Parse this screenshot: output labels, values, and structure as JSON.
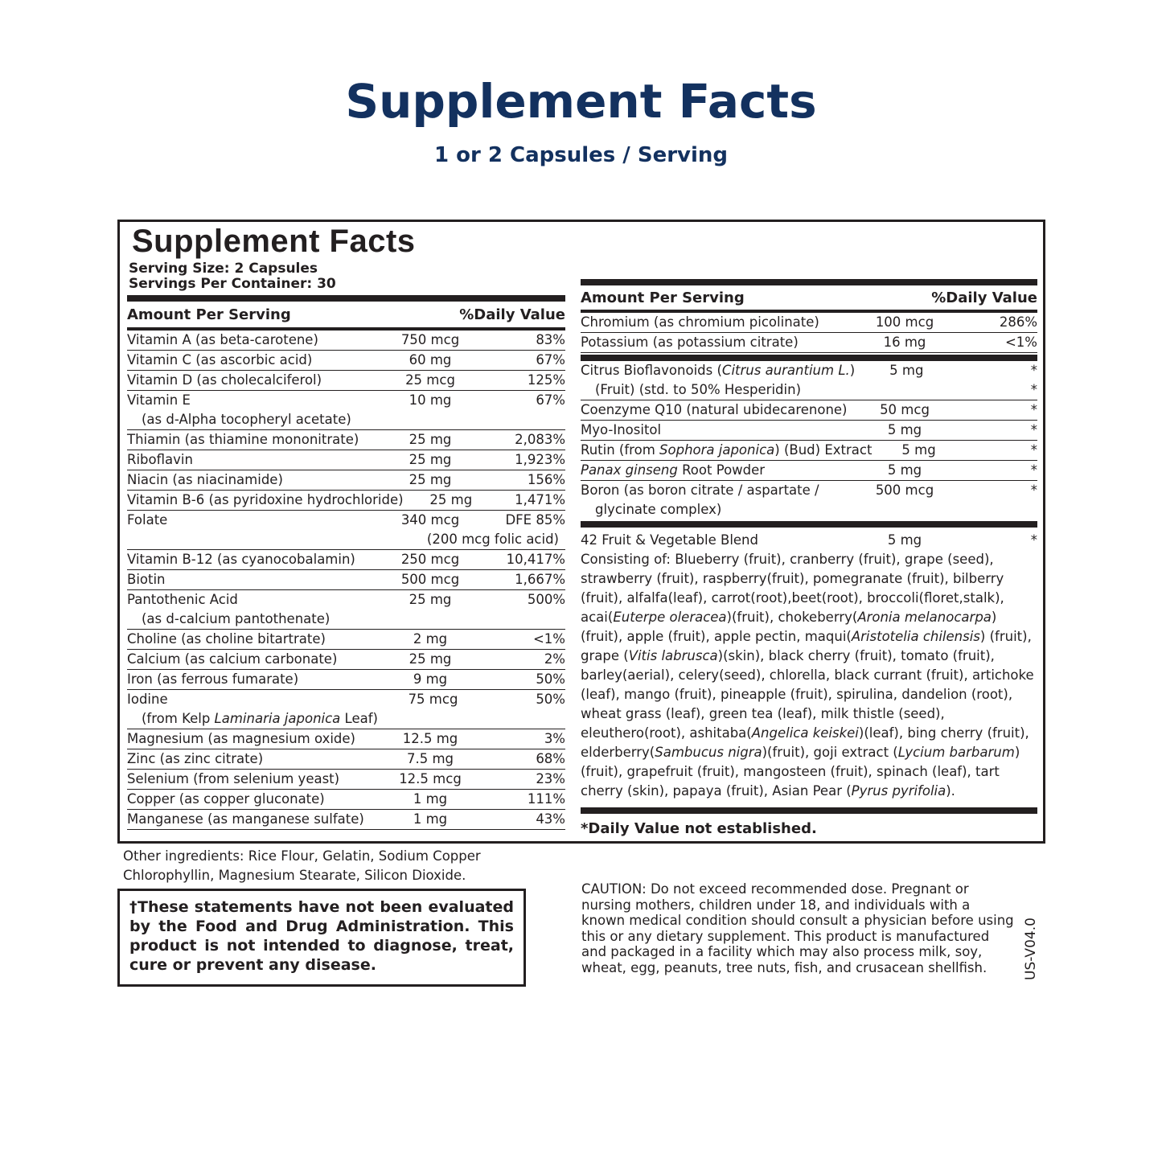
{
  "header": {
    "title": "Supplement Facts",
    "subtitle": "1 or 2 Capsules / Serving"
  },
  "panel": {
    "title": "Supplement Facts",
    "serving_size": "Serving Size: 2 Capsules",
    "servings_per_container": "Servings Per Container: 30",
    "col_amount": "Amount Per Serving",
    "col_dv": "%Daily Value",
    "left_rows": [
      {
        "name": [
          {
            "t": "Vitamin A (as beta-carotene)"
          }
        ],
        "amount": "750 mcg",
        "dv": "83%"
      },
      {
        "name": [
          {
            "t": "Vitamin C (as ascorbic acid)"
          }
        ],
        "amount": "60 mg",
        "dv": "67%"
      },
      {
        "name": [
          {
            "t": "Vitamin D (as cholecalciferol)"
          }
        ],
        "amount": "25 mcg",
        "dv": "125%"
      },
      {
        "name": [
          {
            "t": "Vitamin E"
          }
        ],
        "sub": [
          {
            "t": "(as d-Alpha tocopheryl acetate)"
          }
        ],
        "amount": "10 mg",
        "dv": "67%"
      },
      {
        "name": [
          {
            "t": "Thiamin (as thiamine mononitrate)"
          }
        ],
        "amount": "25 mg",
        "dv": "2,083%"
      },
      {
        "name": [
          {
            "t": "Riboflavin"
          }
        ],
        "amount": "25 mg",
        "dv": "1,923%"
      },
      {
        "name": [
          {
            "t": "Niacin (as niacinamide)"
          }
        ],
        "amount": "25 mg",
        "dv": "156%"
      },
      {
        "name": [
          {
            "t": "Vitamin B-6 (as pyridoxine hydrochloride)"
          }
        ],
        "amount": "25 mg",
        "dv": "1,471%"
      },
      {
        "name": [
          {
            "t": "Folate"
          }
        ],
        "amount": "340 mcg",
        "dv": "DFE 85%",
        "amount_sub": "(200 mcg folic acid)"
      },
      {
        "name": [
          {
            "t": "Vitamin B-12 (as cyanocobalamin)"
          }
        ],
        "amount": "250 mcg",
        "dv": "10,417%"
      },
      {
        "name": [
          {
            "t": "Biotin"
          }
        ],
        "amount": "500 mcg",
        "dv": "1,667%"
      },
      {
        "name": [
          {
            "t": "Pantothenic Acid"
          }
        ],
        "sub": [
          {
            "t": "(as d-calcium pantothenate)"
          }
        ],
        "amount": "25 mg",
        "dv": "500%"
      },
      {
        "name": [
          {
            "t": "Choline (as choline bitartrate)"
          }
        ],
        "amount": "2 mg",
        "dv": "<1%"
      },
      {
        "name": [
          {
            "t": "Calcium (as calcium carbonate)"
          }
        ],
        "amount": "25 mg",
        "dv": "2%"
      },
      {
        "name": [
          {
            "t": "Iron (as ferrous fumarate)"
          }
        ],
        "amount": "9 mg",
        "dv": "50%"
      },
      {
        "name": [
          {
            "t": "Iodine"
          }
        ],
        "sub": [
          {
            "t": "(from Kelp "
          },
          {
            "t": "Laminaria japonica",
            "i": true
          },
          {
            "t": " Leaf)"
          }
        ],
        "amount": "75 mcg",
        "dv": "50%"
      },
      {
        "name": [
          {
            "t": "Magnesium (as magnesium oxide)"
          }
        ],
        "amount": "12.5 mg",
        "dv": "3%"
      },
      {
        "name": [
          {
            "t": "Zinc (as zinc citrate)"
          }
        ],
        "amount": "7.5 mg",
        "dv": "68%"
      },
      {
        "name": [
          {
            "t": "Selenium (from selenium yeast)"
          }
        ],
        "amount": "12.5 mcg",
        "dv": "23%"
      },
      {
        "name": [
          {
            "t": "Copper (as copper gluconate)"
          }
        ],
        "amount": "1 mg",
        "dv": "111%"
      },
      {
        "name": [
          {
            "t": "Manganese (as manganese sulfate)"
          }
        ],
        "amount": "1 mg",
        "dv": "43%"
      }
    ],
    "right_rows_a": [
      {
        "name": [
          {
            "t": "Chromium (as chromium picolinate)"
          }
        ],
        "amount": "100 mcg",
        "dv": "286%"
      },
      {
        "name": [
          {
            "t": "Potassium (as potassium citrate)"
          }
        ],
        "amount": "16 mg",
        "dv": "<1%"
      }
    ],
    "right_rows_b": [
      {
        "name": [
          {
            "t": "Citrus Bioflavonoids ("
          },
          {
            "t": "Citrus aurantium L.",
            "i": true
          },
          {
            "t": ")"
          }
        ],
        "sub": [
          {
            "t": "(Fruit) (std. to 50% Hesperidin)"
          }
        ],
        "amount": "5 mg",
        "dv": "*",
        "dv_sub": "*"
      },
      {
        "name": [
          {
            "t": "Coenzyme Q10 (natural ubidecarenone)"
          }
        ],
        "amount": "50 mcg",
        "dv": "*"
      },
      {
        "name": [
          {
            "t": "Myo-Inositol"
          }
        ],
        "amount": "5 mg",
        "dv": "*"
      },
      {
        "name": [
          {
            "t": "Rutin (from "
          },
          {
            "t": "Sophora japonica",
            "i": true
          },
          {
            "t": ") (Bud) Extract"
          }
        ],
        "amount": "5 mg",
        "dv": "*"
      },
      {
        "name": [
          {
            "t": "Panax ginseng",
            "i": true
          },
          {
            "t": " Root Powder"
          }
        ],
        "amount": "5 mg",
        "dv": "*"
      },
      {
        "name": [
          {
            "t": "Boron (as boron citrate / aspartate /"
          }
        ],
        "sub": [
          {
            "t": "glycinate complex)"
          }
        ],
        "amount": "500 mcg",
        "dv": "*"
      }
    ],
    "blend": {
      "name": "42 Fruit & Vegetable Blend",
      "amount": "5 mg",
      "dv": "*",
      "consisting": [
        {
          "t": "Consisting of: Blueberry (fruit), cranberry (fruit), grape (seed), strawberry (fruit), raspberry(fruit), pomegranate (fruit), bilberry (fruit), alfalfa(leaf), carrot(root),beet(root), broccoli(floret,stalk), acai("
        },
        {
          "t": "Euterpe oleracea",
          "i": true
        },
        {
          "t": ")(fruit), chokeberry("
        },
        {
          "t": "Aronia melanocarpa",
          "i": true
        },
        {
          "t": ") (fruit), apple (fruit), apple pectin, maqui("
        },
        {
          "t": "Aristotelia chilensis",
          "i": true
        },
        {
          "t": ") (fruit), grape ("
        },
        {
          "t": "Vitis labrusca",
          "i": true
        },
        {
          "t": ")(skin), black cherry (fruit), tomato (fruit), barley(aerial), celery(seed), chlorella, black currant (fruit), artichoke (leaf), mango (fruit), pineapple (fruit), spirulina, dandelion (root), wheat grass (leaf), green tea (leaf), milk thistle (seed), eleuthero(root), ashitaba("
        },
        {
          "t": "Angelica keiskei",
          "i": true
        },
        {
          "t": ")(leaf), bing cherry (fruit), elderberry("
        },
        {
          "t": "Sambucus nigra",
          "i": true
        },
        {
          "t": ")(fruit), goji extract ("
        },
        {
          "t": "Lycium barbarum",
          "i": true
        },
        {
          "t": ")(fruit), grapefruit (fruit), mangosteen (fruit), spinach (leaf), tart cherry (skin), papaya (fruit), Asian Pear ("
        },
        {
          "t": "Pyrus pyrifolia",
          "i": true
        },
        {
          "t": ")."
        }
      ]
    },
    "footnote": "*Daily Value not established."
  },
  "other_ingredients": "Other ingredients: Rice Flour, Gelatin, Sodium Copper Chlorophyllin, Magnesium Stearate, Silicon Dioxide.",
  "disclaimer": "†These statements have not been evaluated by the Food and Drug Administration. This product is not intended to diagnose, treat, cure or prevent any disease.",
  "caution": "CAUTION: Do not exceed recommended dose. Pregnant or nursing mothers, children under 18, and individuals with a known medical condition should consult a physician before using this or any dietary supplement. This product is manufactured and packaged in a facility which may also process milk, soy, wheat, egg, peanuts, tree nuts, fish, and crusacean shellfish.",
  "version": "US-V04.0"
}
